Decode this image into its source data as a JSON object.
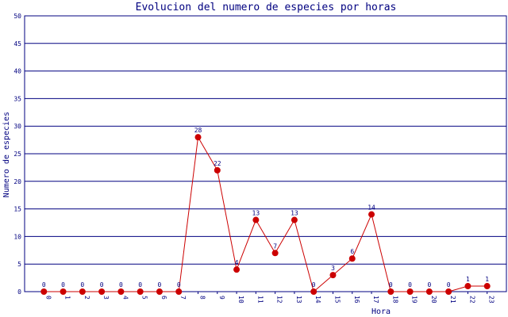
{
  "chart_data": {
    "type": "line",
    "title": "Evolucion del numero de especies por horas",
    "x_label": "Hora",
    "y_label": "Numero de especies",
    "categories": [
      "0",
      "1",
      "2",
      "3",
      "4",
      "5",
      "6",
      "7",
      "8",
      "9",
      "10",
      "11",
      "12",
      "13",
      "14",
      "15",
      "16",
      "17",
      "18",
      "19",
      "20",
      "21",
      "22",
      "23"
    ],
    "series": [
      {
        "name": "especies",
        "color": "#cc0000",
        "marker_color": "#cc0000",
        "values": [
          0,
          0,
          0,
          0,
          0,
          0,
          0,
          0,
          28,
          22,
          4,
          13,
          7,
          13,
          0,
          3,
          6,
          14,
          0,
          0,
          0,
          0,
          1,
          1
        ]
      }
    ],
    "ylim": [
      0,
      50
    ],
    "yticks": [
      0,
      5,
      10,
      15,
      20,
      25,
      30,
      35,
      40,
      45,
      50
    ],
    "grid": true
  }
}
